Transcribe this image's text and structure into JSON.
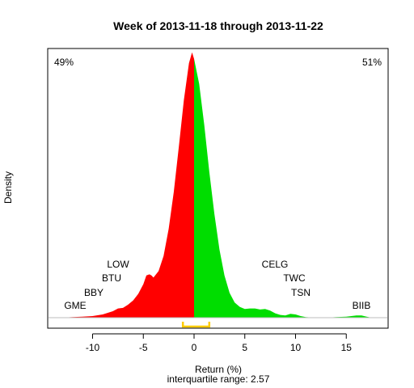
{
  "chart_data": {
    "type": "area",
    "title": "Week of 2013-11-18 through 2013-11-22",
    "xlabel": "Return (%)",
    "ylabel": "Density",
    "subtitle": "interquartile range: 2.57",
    "xlim": [
      -14,
      19
    ],
    "ylim": [
      0,
      0.25
    ],
    "x_ticks": [
      -10,
      -5,
      0,
      5,
      10,
      15
    ],
    "split_at": 0,
    "series": [
      {
        "name": "",
        "color": "#ff0000",
        "x": [
          -13,
          -12,
          -11,
          -10,
          -9,
          -8,
          -7.5,
          -7,
          -6.5,
          -6,
          -5.5,
          -5,
          -4.7,
          -4.4,
          -4.2,
          -4,
          -3.5,
          -3,
          -2.5,
          -2,
          -1.5,
          -1,
          -0.5,
          -0.2,
          0
        ],
        "y": [
          0.0,
          0.0005,
          0.001,
          0.0015,
          0.003,
          0.006,
          0.0085,
          0.009,
          0.012,
          0.016,
          0.022,
          0.031,
          0.039,
          0.04,
          0.039,
          0.037,
          0.043,
          0.057,
          0.082,
          0.116,
          0.158,
          0.201,
          0.235,
          0.245,
          0.239
        ]
      },
      {
        "name": "",
        "color": "#00dd00",
        "x": [
          0,
          0.5,
          1,
          1.5,
          2,
          2.5,
          3,
          3.5,
          4,
          4.5,
          5,
          5.5,
          6,
          6.5,
          7,
          7.5,
          8,
          8.5,
          9,
          9.5,
          10,
          10.5,
          11,
          12,
          13,
          14,
          15,
          16,
          16.5,
          17,
          17.5,
          18
        ],
        "y": [
          0.239,
          0.216,
          0.178,
          0.135,
          0.096,
          0.063,
          0.039,
          0.023,
          0.014,
          0.01,
          0.008,
          0.0085,
          0.0085,
          0.0075,
          0.008,
          0.0065,
          0.004,
          0.0025,
          0.002,
          0.0035,
          0.003,
          0.0015,
          0.0005,
          0.0,
          0.0,
          0.0005,
          0.001,
          0.002,
          0.002,
          0.001,
          0.0,
          0.0
        ]
      }
    ],
    "left_percent": {
      "text": "49%",
      "color": "#ff0000"
    },
    "right_percent": {
      "text": "51%",
      "color": "#008800"
    },
    "iqr_bracket": {
      "low": -1.1,
      "high": 1.5,
      "color": "#ffcc00"
    },
    "tickers_left": [
      "LOW",
      "BTU",
      "BBY",
      "GME"
    ],
    "tickers_right": [
      "CELG",
      "TWC",
      "TSN",
      "BIIB"
    ],
    "baseline_color": "#bebebe"
  }
}
